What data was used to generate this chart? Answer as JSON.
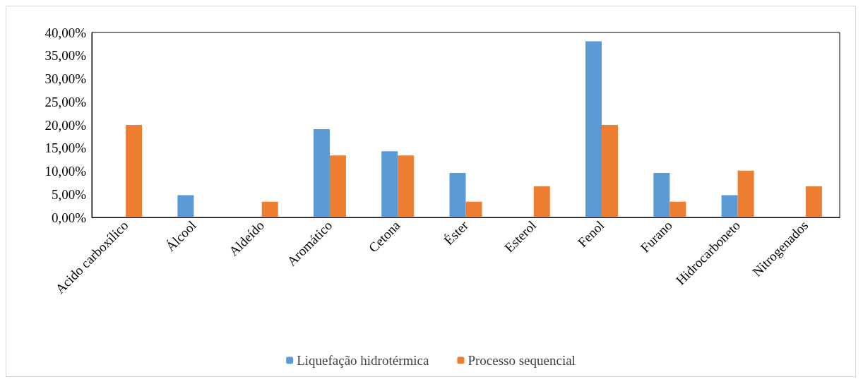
{
  "chart_data": {
    "type": "bar",
    "categories": [
      "Acido carboxílico",
      "Álcool",
      "Aldeído",
      "Aromático",
      "Cetona",
      "Éster",
      "Esterol",
      "Fenol",
      "Furano",
      "Hidrocarboneto",
      "Nitrogenados"
    ],
    "series": [
      {
        "name": "Liquefação hidrotérmica",
        "color": "#5b9bd5",
        "values": [
          0,
          4.8,
          0,
          19.1,
          14.3,
          9.6,
          0,
          38.1,
          9.6,
          4.8,
          0
        ]
      },
      {
        "name": "Processo sequencial",
        "color": "#ed7d31",
        "values": [
          20.0,
          0,
          3.4,
          13.4,
          13.4,
          3.4,
          6.7,
          20.0,
          3.4,
          10.1,
          6.7
        ]
      }
    ],
    "ylim": [
      0,
      40
    ],
    "yticks": [
      {
        "value": 0,
        "label": "0,00%"
      },
      {
        "value": 5,
        "label": "5,00%"
      },
      {
        "value": 10,
        "label": "10,00%"
      },
      {
        "value": 15,
        "label": "15,00%"
      },
      {
        "value": 20,
        "label": "20,00%"
      },
      {
        "value": 25,
        "label": "25,00%"
      },
      {
        "value": 30,
        "label": "30,00%"
      },
      {
        "value": 35,
        "label": "35,00%"
      },
      {
        "value": 40,
        "label": "40,00%"
      }
    ],
    "grid": false,
    "legend": "bottom"
  }
}
